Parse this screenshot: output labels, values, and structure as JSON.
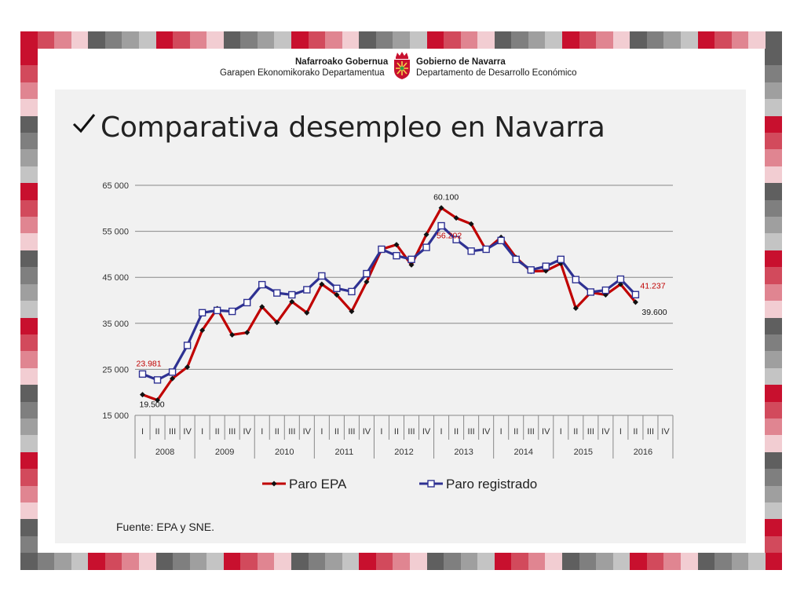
{
  "header": {
    "org_eu": "Nafarroako Gobernua",
    "dept_eu": "Garapen Ekonomikorako Departamentua",
    "org_es": "Gobierno de Navarra",
    "dept_es": "Departamento de Desarrollo Económico",
    "logo_icon": "navarra-coat-of-arms-icon"
  },
  "title": "Comparativa desempleo en Navarra",
  "title_icon": "checkmark-icon",
  "source": "Fuente: EPA y SNE.",
  "colors": {
    "frame_reds": [
      "#c8102e",
      "#d24a5c",
      "#e08591",
      "#f2cdd2"
    ],
    "frame_greys": [
      "#5f5f5f",
      "#7f7f7f",
      "#9f9f9f",
      "#c4c4c4"
    ],
    "panel": "#f1f1f1",
    "epa": "#c00000",
    "registrado": "#2e3192"
  },
  "chart_data": {
    "type": "line",
    "quarter_labels": [
      "I",
      "II",
      "III",
      "IV"
    ],
    "years": [
      "2008",
      "2009",
      "2010",
      "2011",
      "2012",
      "2013",
      "2014",
      "2015",
      "2016"
    ],
    "ylim": [
      15000,
      65000
    ],
    "yticks": [
      15000,
      25000,
      35000,
      45000,
      55000,
      65000
    ],
    "ytick_labels": [
      "15 000",
      "25 000",
      "35 000",
      "45 000",
      "55 000",
      "65 000"
    ],
    "grid": "horizontal",
    "legend_position": "bottom",
    "series": [
      {
        "name": "Paro EPA",
        "color": "#c00000",
        "marker": "diamond",
        "values": [
          19500,
          18300,
          23000,
          25500,
          33500,
          38200,
          32500,
          33000,
          38600,
          35200,
          39700,
          37300,
          43500,
          41200,
          37600,
          44000,
          51100,
          52100,
          47700,
          54300,
          60100,
          57900,
          56600,
          50900,
          53700,
          49300,
          46300,
          46400,
          48000,
          38300,
          41700,
          41200,
          43500,
          39600,
          null,
          null
        ]
      },
      {
        "name": "Paro registrado",
        "color": "#2e3192",
        "marker": "square",
        "values": [
          23981,
          22700,
          24400,
          30200,
          37300,
          37800,
          37600,
          39500,
          43400,
          41600,
          41200,
          42300,
          45300,
          42600,
          41900,
          45800,
          51100,
          49700,
          48900,
          51500,
          56202,
          53200,
          50700,
          51100,
          53000,
          48900,
          46600,
          47400,
          48900,
          44500,
          41800,
          42200,
          44600,
          41237,
          null,
          null
        ]
      }
    ],
    "annotations": [
      {
        "series": 0,
        "index": 0,
        "text": "19.500"
      },
      {
        "series": 1,
        "index": 0,
        "text": "23.981"
      },
      {
        "series": 0,
        "index": 20,
        "text": "60.100"
      },
      {
        "series": 1,
        "index": 20,
        "text": "56.202"
      },
      {
        "series": 1,
        "index": 33,
        "text": "41.237"
      },
      {
        "series": 0,
        "index": 33,
        "text": "39.600"
      }
    ]
  }
}
